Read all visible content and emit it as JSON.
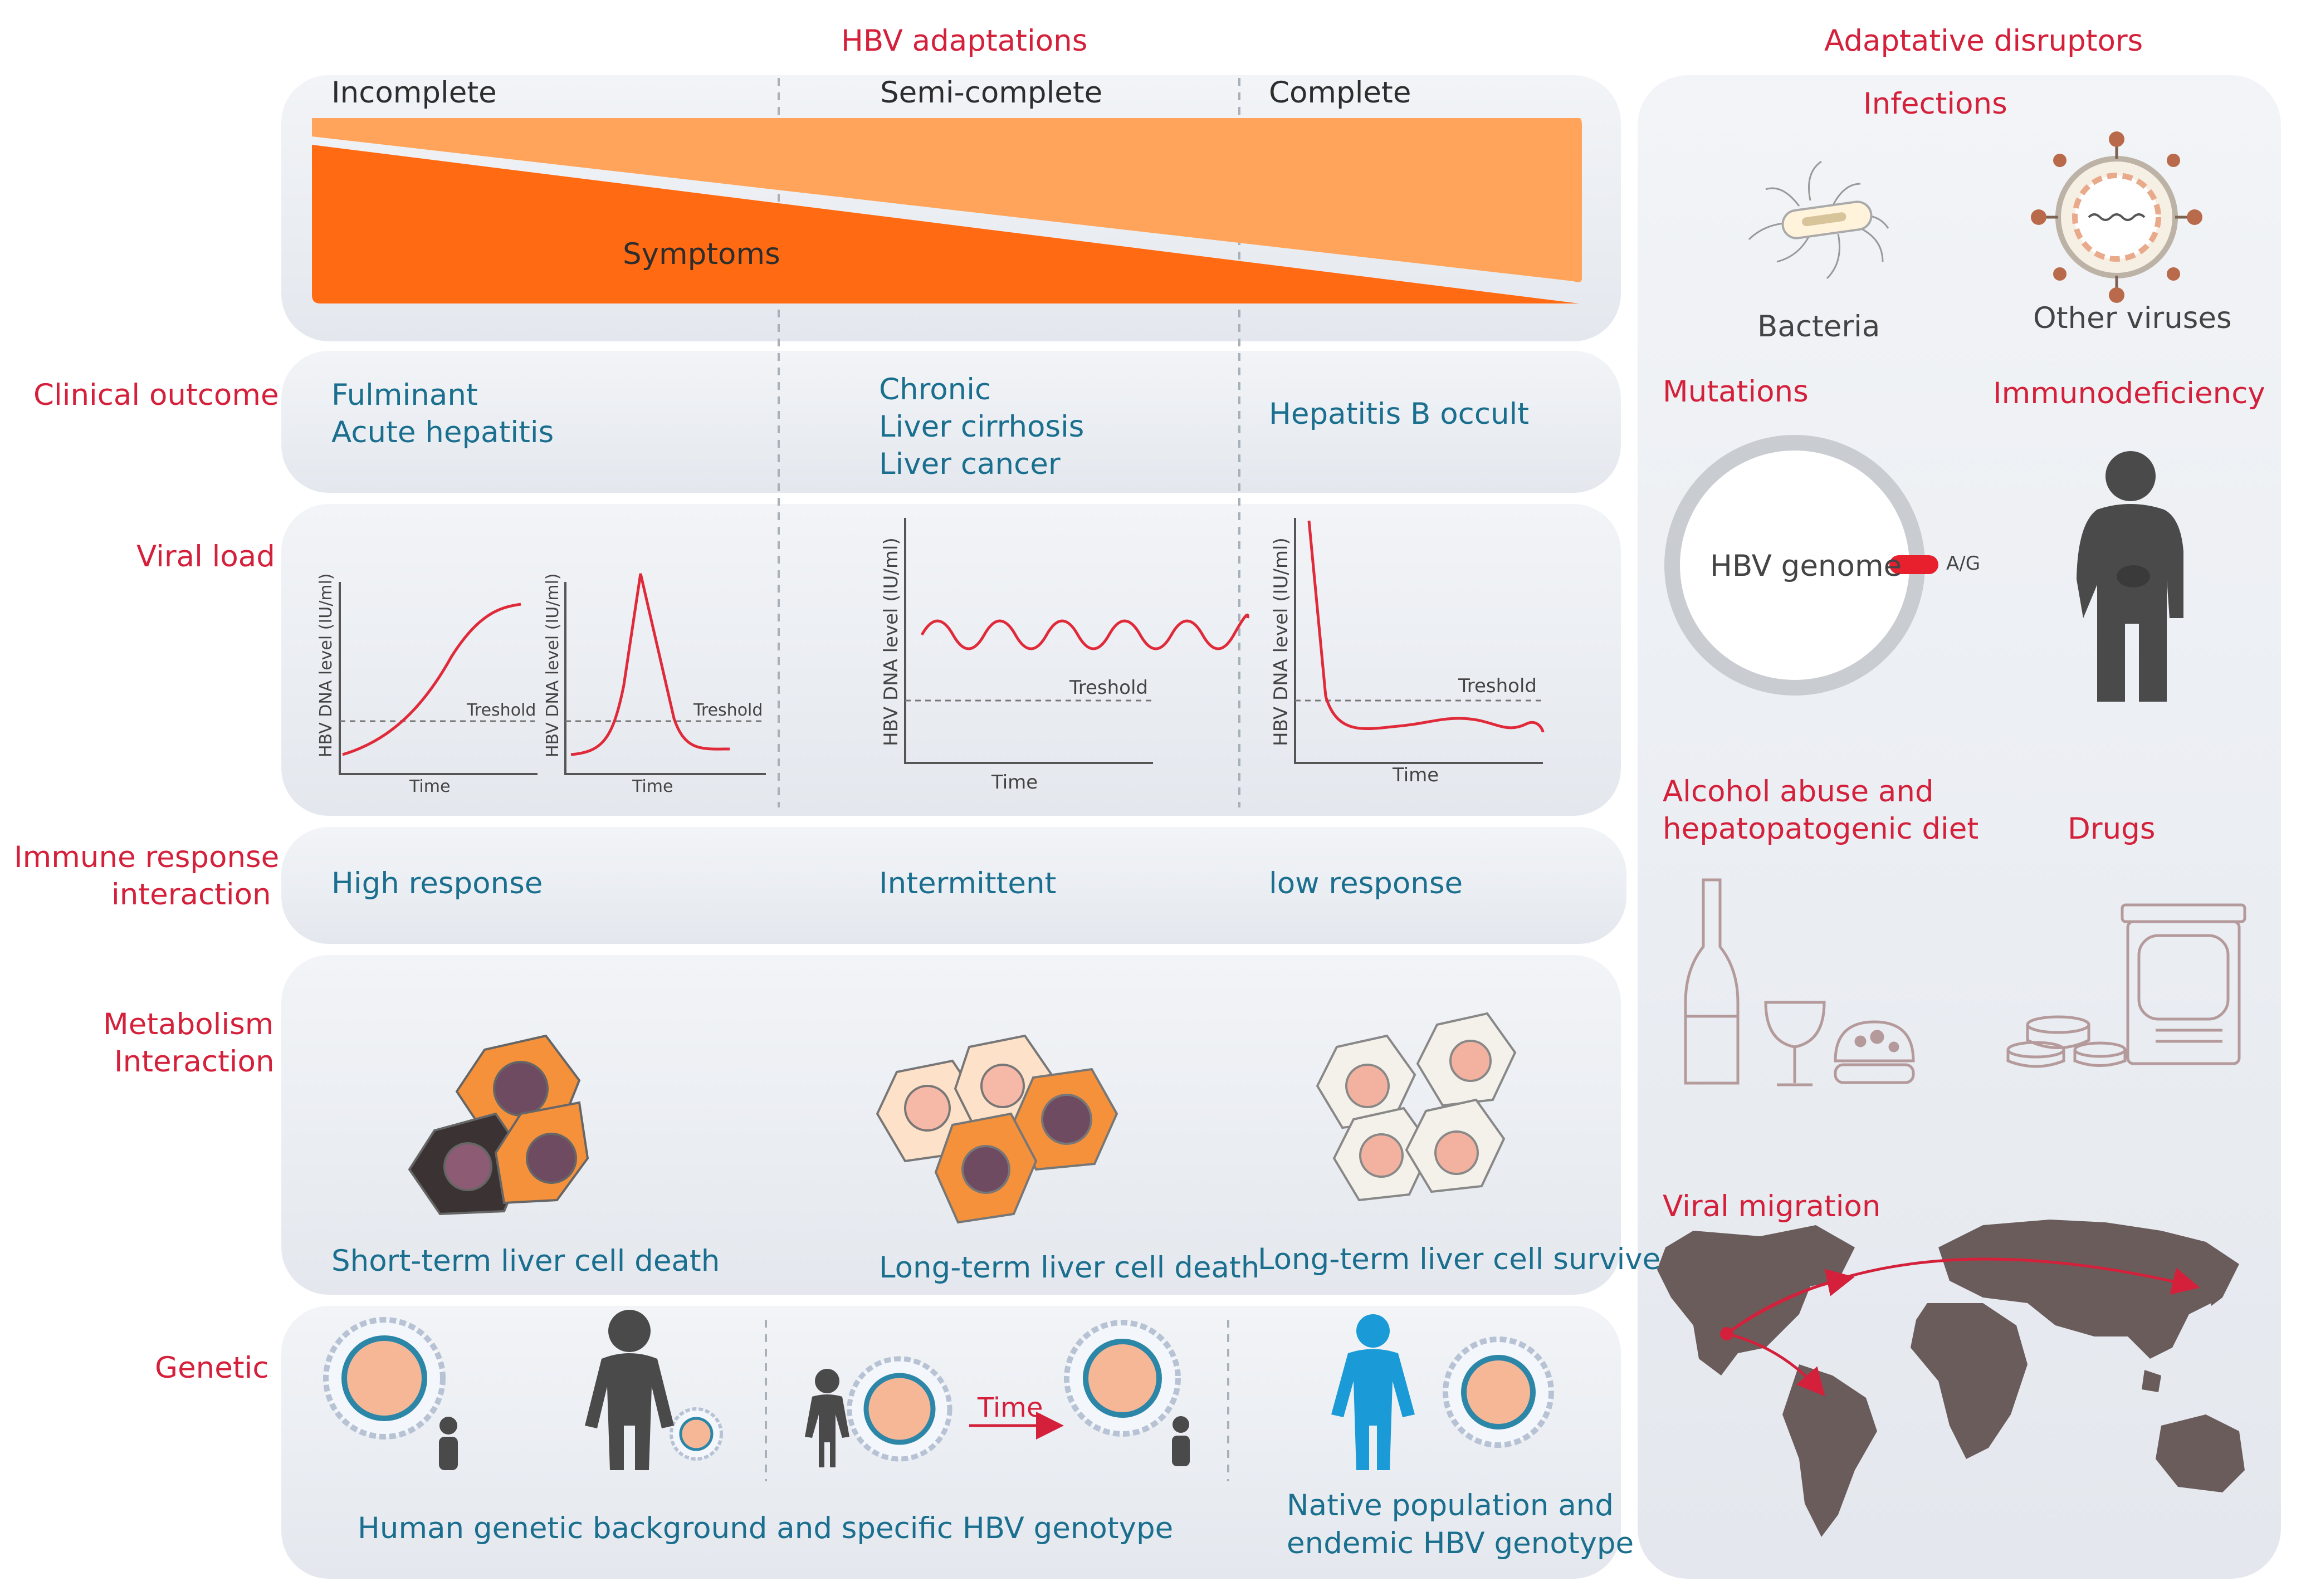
{
  "headers": {
    "hbv_adaptations": "HBV adaptations",
    "adaptative_disruptors": "Adaptative disruptors"
  },
  "adaptation_levels": [
    "Incomplete",
    "Semi-complete",
    "Complete"
  ],
  "symptoms_label": "Symptoms",
  "rows": {
    "clinical_outcome": {
      "label": "Clinical outcome",
      "incomplete": [
        "Fulminant",
        "Acute hepatitis"
      ],
      "semi": [
        "Chronic",
        "Liver cirrhosis",
        "Liver cancer"
      ],
      "complete": [
        "Hepatitis B occult"
      ]
    },
    "viral_load": {
      "label": "Viral load",
      "y_axis": "HBV DNA level (IU/ml)",
      "x_axis": "Time",
      "threshold": "Treshold"
    },
    "immune": {
      "label": [
        "Immune response",
        "interaction"
      ],
      "incomplete": "High response",
      "semi": "Intermittent",
      "complete": "low response"
    },
    "metabolism": {
      "label": [
        "Metabolism",
        "Interaction"
      ],
      "incomplete": "Short-term liver cell death",
      "semi": "Long-term liver cell death",
      "complete": "Long-term liver cell survive"
    },
    "genetic": {
      "label": "Genetic",
      "time_label": "Time",
      "caption_left": "Human genetic background and specific HBV genotype",
      "caption_right": [
        "Native population and",
        "endemic HBV genotype"
      ]
    }
  },
  "disruptors": {
    "infections": "Infections",
    "bacteria": "Bacteria",
    "other_viruses": "Other viruses",
    "mutations": "Mutations",
    "immunodeficiency": "Immunodeficiency",
    "hbv_genome": "HBV genome",
    "mutation_site": "A/G",
    "alcohol": [
      "Alcohol abuse and",
      "hepatopatogenic diet"
    ],
    "drugs": "Drugs",
    "viral_migration": "Viral migration"
  },
  "colors": {
    "accent_red": "#d4203a",
    "teal_text": "#1a6e8e",
    "symptom_dark_orange": "#ff6a12",
    "symptom_light_orange": "#ffa45a",
    "panel_bg": "#edf0f4",
    "person_gray": "#4a4a4a",
    "person_blue": "#1a9ad6",
    "map_brown": "#6b5c5c"
  },
  "icons": [
    "bacteria-icon",
    "virus-icon",
    "person-icon",
    "wine-bottle-icon",
    "wine-glass-icon",
    "burger-icon",
    "pill-icon",
    "world-map-icon",
    "liver-cell-icon"
  ]
}
